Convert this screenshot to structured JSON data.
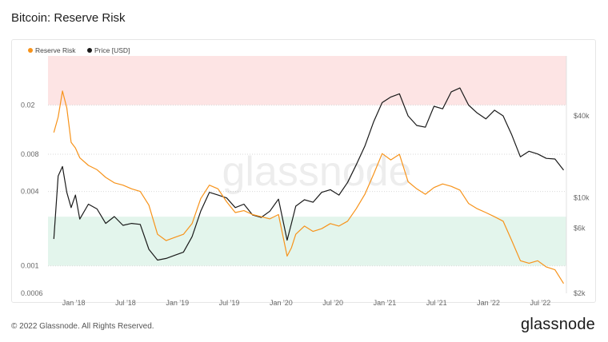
{
  "title": "Bitcoin: Reserve Risk",
  "footer": {
    "copyright": "© 2022 Glassnode. All Rights Reserved.",
    "brand": "glassnode"
  },
  "watermark": "glassnode",
  "colors": {
    "reserve": "#f7931a",
    "price": "#1a1a1a",
    "topZone": "#fde4e4",
    "bottomZone": "#e3f5ec"
  },
  "chart_data": {
    "type": "line",
    "title": "Bitcoin: Reserve Risk",
    "x_ticks": [
      "Jan '18",
      "Jul '18",
      "Jan '19",
      "Jul '19",
      "Jan '20",
      "Jul '20",
      "Jan '21",
      "Jul '21",
      "Jan '22",
      "Jul '22"
    ],
    "y_left_ticks": [
      "0.02",
      "0.008",
      "0.004",
      "0.001",
      "0.0006"
    ],
    "y_right_ticks": [
      "$40k",
      "$10k",
      "$6k",
      "$2k"
    ],
    "y_left_scale": "log",
    "y_right_scale": "log",
    "zones": {
      "red": {
        "from": 0.02,
        "to": "top"
      },
      "green": {
        "from": 0.001,
        "to": 0.0025
      }
    },
    "legend_position": "top-left",
    "series": [
      {
        "name": "Reserve Risk",
        "axis": "left",
        "x": [
          "2017-12",
          "2017-12",
          "2018-01",
          "2018-01",
          "2018-02",
          "2018-02",
          "2018-03",
          "2018-04",
          "2018-05",
          "2018-06",
          "2018-07",
          "2018-08",
          "2018-09",
          "2018-10",
          "2018-11",
          "2018-12",
          "2019-01",
          "2019-02",
          "2019-03",
          "2019-04",
          "2019-05",
          "2019-06",
          "2019-07",
          "2019-08",
          "2019-09",
          "2019-10",
          "2019-11",
          "2019-12",
          "2020-01",
          "2020-02",
          "2020-03",
          "2020-03",
          "2020-04",
          "2020-05",
          "2020-06",
          "2020-07",
          "2020-08",
          "2020-09",
          "2020-10",
          "2020-11",
          "2020-12",
          "2021-01",
          "2021-02",
          "2021-03",
          "2021-04",
          "2021-05",
          "2021-06",
          "2021-07",
          "2021-08",
          "2021-09",
          "2021-10",
          "2021-11",
          "2021-12",
          "2022-01",
          "2022-02",
          "2022-03",
          "2022-04",
          "2022-05",
          "2022-06",
          "2022-07",
          "2022-08",
          "2022-09",
          "2022-10",
          "2022-11"
        ],
        "y": [
          0.012,
          0.016,
          0.026,
          0.019,
          0.01,
          0.009,
          0.0075,
          0.0065,
          0.006,
          0.0052,
          0.0047,
          0.0045,
          0.0042,
          0.004,
          0.0031,
          0.0018,
          0.0016,
          0.0017,
          0.0018,
          0.0022,
          0.0035,
          0.0045,
          0.0042,
          0.0033,
          0.0027,
          0.0028,
          0.0026,
          0.0025,
          0.0024,
          0.0026,
          0.0012,
          0.0014,
          0.0018,
          0.0021,
          0.0019,
          0.002,
          0.0022,
          0.0021,
          0.0023,
          0.0029,
          0.0038,
          0.0055,
          0.0081,
          0.0072,
          0.008,
          0.0048,
          0.0042,
          0.0038,
          0.0043,
          0.0046,
          0.0044,
          0.0041,
          0.0032,
          0.0029,
          0.0027,
          0.0025,
          0.0023,
          0.0016,
          0.0011,
          0.00105,
          0.0011,
          0.00098,
          0.00093,
          0.00072
        ]
      },
      {
        "name": "Price [USD]",
        "axis": "right",
        "x": [
          "2017-12",
          "2017-12",
          "2018-01",
          "2018-01",
          "2018-02",
          "2018-02",
          "2018-03",
          "2018-04",
          "2018-05",
          "2018-06",
          "2018-07",
          "2018-08",
          "2018-09",
          "2018-10",
          "2018-11",
          "2018-12",
          "2019-01",
          "2019-02",
          "2019-03",
          "2019-04",
          "2019-05",
          "2019-06",
          "2019-07",
          "2019-08",
          "2019-09",
          "2019-10",
          "2019-11",
          "2019-12",
          "2020-01",
          "2020-02",
          "2020-03",
          "2020-03",
          "2020-04",
          "2020-05",
          "2020-06",
          "2020-07",
          "2020-08",
          "2020-09",
          "2020-10",
          "2020-11",
          "2020-12",
          "2021-01",
          "2021-02",
          "2021-03",
          "2021-04",
          "2021-05",
          "2021-06",
          "2021-07",
          "2021-08",
          "2021-09",
          "2021-10",
          "2021-11",
          "2021-12",
          "2022-01",
          "2022-02",
          "2022-03",
          "2022-04",
          "2022-05",
          "2022-06",
          "2022-07",
          "2022-08",
          "2022-09",
          "2022-10",
          "2022-11"
        ],
        "y": [
          5000,
          14500,
          17000,
          11000,
          8500,
          10500,
          7000,
          9000,
          8300,
          6500,
          7300,
          6300,
          6500,
          6400,
          4200,
          3500,
          3600,
          3800,
          4000,
          5200,
          8000,
          11000,
          10500,
          10000,
          8500,
          9000,
          7500,
          7200,
          8000,
          9800,
          4900,
          6500,
          8700,
          9700,
          9300,
          11000,
          11500,
          10500,
          13000,
          17500,
          24000,
          36000,
          50000,
          55000,
          58000,
          40000,
          34000,
          33000,
          47000,
          45000,
          60000,
          64000,
          48000,
          42000,
          38000,
          44000,
          40000,
          29000,
          20000,
          22000,
          21000,
          19500,
          19300,
          16000
        ]
      }
    ]
  }
}
